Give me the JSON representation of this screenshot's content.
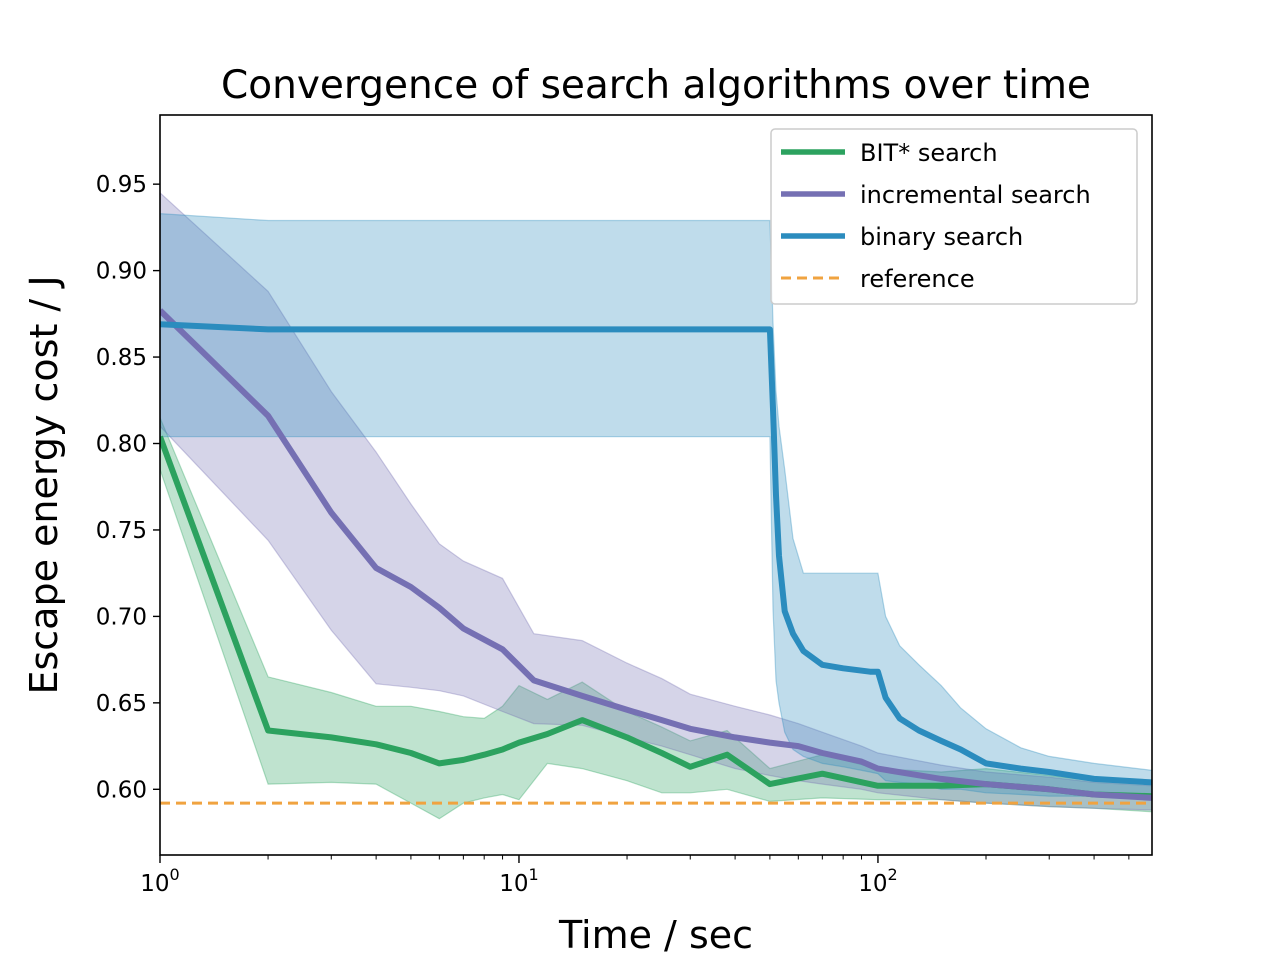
{
  "chart_data": {
    "type": "line",
    "title": "Convergence of search algorithms over time",
    "xlabel": "Time / sec",
    "ylabel": "Escape energy cost / J",
    "xscale": "log",
    "xlim": [
      1,
      580
    ],
    "ylim": [
      0.562,
      0.99
    ],
    "x_ticks": [
      {
        "value": 1,
        "base": "10",
        "exp": "0"
      },
      {
        "value": 10,
        "base": "10",
        "exp": "1"
      },
      {
        "value": 100,
        "base": "10",
        "exp": "2"
      }
    ],
    "y_ticks": [
      0.6,
      0.65,
      0.7,
      0.75,
      0.8,
      0.85,
      0.9,
      0.95
    ],
    "y_tick_labels": [
      "0.60",
      "0.65",
      "0.70",
      "0.75",
      "0.80",
      "0.85",
      "0.90",
      "0.95"
    ],
    "grid": false,
    "legend_position": "top-right",
    "series": [
      {
        "name": "BIT* search",
        "color": "#2ca25f",
        "x": [
          1,
          2,
          3,
          4,
          5,
          6,
          7,
          8,
          9,
          10,
          12,
          15,
          20,
          25,
          30,
          38,
          50,
          70,
          100,
          150,
          200,
          300,
          400,
          580
        ],
        "y": [
          0.804,
          0.634,
          0.63,
          0.626,
          0.621,
          0.615,
          0.617,
          0.62,
          0.623,
          0.627,
          0.632,
          0.64,
          0.63,
          0.621,
          0.613,
          0.62,
          0.603,
          0.609,
          0.602,
          0.602,
          0.603,
          0.6,
          0.597,
          0.596
        ],
        "lower": [
          0.785,
          0.603,
          0.604,
          0.603,
          0.592,
          0.583,
          0.592,
          0.595,
          0.597,
          0.594,
          0.615,
          0.612,
          0.605,
          0.598,
          0.598,
          0.6,
          0.593,
          0.595,
          0.594,
          0.594,
          0.592,
          0.59,
          0.589,
          0.587
        ],
        "upper": [
          0.815,
          0.665,
          0.656,
          0.648,
          0.648,
          0.645,
          0.642,
          0.641,
          0.648,
          0.66,
          0.652,
          0.662,
          0.645,
          0.636,
          0.628,
          0.634,
          0.612,
          0.62,
          0.612,
          0.61,
          0.612,
          0.608,
          0.605,
          0.603
        ]
      },
      {
        "name": "incremental search",
        "color": "#7570b3",
        "x": [
          1,
          2,
          3,
          4,
          5,
          6,
          7,
          9,
          11,
          15,
          20,
          25,
          30,
          40,
          50,
          60,
          70,
          90,
          100,
          150,
          200,
          300,
          400,
          580
        ],
        "y": [
          0.877,
          0.816,
          0.76,
          0.728,
          0.717,
          0.705,
          0.693,
          0.681,
          0.663,
          0.654,
          0.646,
          0.64,
          0.635,
          0.63,
          0.627,
          0.625,
          0.621,
          0.616,
          0.612,
          0.606,
          0.603,
          0.6,
          0.597,
          0.595
        ],
        "lower": [
          0.81,
          0.744,
          0.692,
          0.661,
          0.659,
          0.657,
          0.654,
          0.645,
          0.638,
          0.637,
          0.63,
          0.625,
          0.62,
          0.612,
          0.608,
          0.605,
          0.603,
          0.6,
          0.598,
          0.594,
          0.592,
          0.59,
          0.589,
          0.588
        ],
        "upper": [
          0.945,
          0.888,
          0.83,
          0.795,
          0.765,
          0.742,
          0.732,
          0.722,
          0.69,
          0.686,
          0.673,
          0.664,
          0.655,
          0.648,
          0.643,
          0.638,
          0.633,
          0.625,
          0.621,
          0.614,
          0.61,
          0.607,
          0.604,
          0.602
        ]
      },
      {
        "name": "binary search",
        "color": "#2b8cbe",
        "x": [
          1,
          2,
          5,
          10,
          20,
          40,
          50,
          51,
          52,
          53,
          55,
          58,
          62,
          70,
          80,
          95,
          100,
          105,
          115,
          130,
          150,
          170,
          200,
          250,
          300,
          400,
          580
        ],
        "y": [
          0.869,
          0.866,
          0.866,
          0.866,
          0.866,
          0.866,
          0.866,
          0.82,
          0.77,
          0.735,
          0.703,
          0.69,
          0.68,
          0.672,
          0.67,
          0.668,
          0.668,
          0.653,
          0.641,
          0.634,
          0.628,
          0.623,
          0.615,
          0.612,
          0.61,
          0.606,
          0.604
        ],
        "lower": [
          0.804,
          0.804,
          0.804,
          0.804,
          0.804,
          0.804,
          0.804,
          0.704,
          0.663,
          0.65,
          0.633,
          0.623,
          0.619,
          0.615,
          0.613,
          0.61,
          0.609,
          0.605,
          0.604,
          0.603,
          0.6,
          0.6,
          0.598,
          0.597,
          0.596,
          0.596,
          0.595
        ],
        "upper": [
          0.933,
          0.929,
          0.929,
          0.929,
          0.929,
          0.929,
          0.929,
          0.87,
          0.83,
          0.81,
          0.785,
          0.745,
          0.725,
          0.725,
          0.725,
          0.725,
          0.725,
          0.7,
          0.683,
          0.672,
          0.66,
          0.647,
          0.635,
          0.624,
          0.619,
          0.615,
          0.611
        ]
      }
    ],
    "reference": {
      "name": "reference",
      "value": 0.592,
      "color": "#f0a340",
      "style": "dashed"
    }
  }
}
